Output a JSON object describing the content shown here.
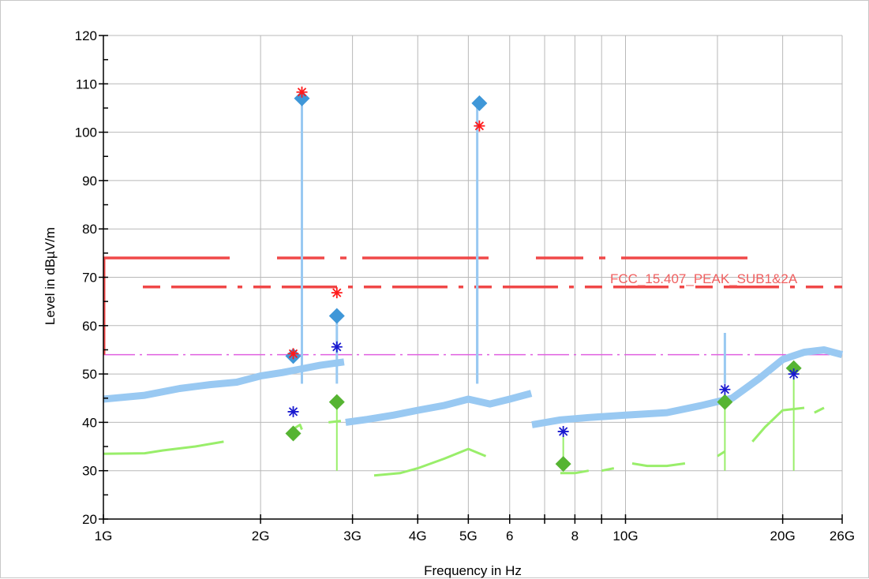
{
  "chart_data": {
    "type": "line",
    "title": "",
    "xlabel": "Frequency in Hz",
    "ylabel": "Level in dBµV/m",
    "x_scale": "log",
    "xlim_hz": [
      1000000000,
      26000000000
    ],
    "ylim": [
      20,
      120
    ],
    "y_ticks": [
      20,
      30,
      40,
      50,
      60,
      70,
      80,
      90,
      100,
      110,
      120
    ],
    "x_ticks": [
      {
        "label": "1G",
        "hz": 1000000000
      },
      {
        "label": "2G",
        "hz": 2000000000
      },
      {
        "label": "3G",
        "hz": 3000000000
      },
      {
        "label": "4G",
        "hz": 4000000000
      },
      {
        "label": "5G",
        "hz": 5000000000
      },
      {
        "label": "6",
        "hz": 6000000000
      },
      {
        "label": "8",
        "hz": 8000000000
      },
      {
        "label": "10G",
        "hz": 10000000000
      },
      {
        "label": "20G",
        "hz": 20000000000
      },
      {
        "label": "26G",
        "hz": 26000000000
      }
    ],
    "grid": true,
    "limit_label": "FCC_15.407_PEAK_SUB1&2A",
    "colors": {
      "peak_trace": "#99c9f2",
      "average_trace": "#99ee6a",
      "limit_line": "#f04848",
      "average_limit_line": "#e060e0",
      "final_peak_marker": "#3f97d8",
      "final_average_marker": "#56b432",
      "red_star": "#ff1a1a",
      "blue_star": "#1a1ad0",
      "grid": "#b8b8b8"
    },
    "limit_lines": [
      {
        "kind": "peak_limit",
        "segments": [
          [
            1000000000,
            18000000000,
            74
          ]
        ]
      },
      {
        "kind": "peak_limit_band",
        "segments": [
          [
            1190000000,
            26000000000,
            68
          ]
        ]
      },
      {
        "kind": "average_limit",
        "segments": [
          [
            1000000000,
            26000000000,
            54
          ]
        ]
      },
      {
        "kind": "limit_vertical",
        "hz": 1000000000,
        "from": 54,
        "to": 74
      }
    ],
    "peak_trace_points": [
      [
        1000000000,
        44.8
      ],
      [
        1200000000,
        45.6
      ],
      [
        1400000000,
        47.0
      ],
      [
        1600000000,
        47.8
      ],
      [
        1800000000,
        48.3
      ],
      [
        2000000000,
        49.6
      ],
      [
        2200000000,
        50.3
      ],
      [
        2380000000,
        51.0
      ],
      [
        2600000000,
        51.8
      ],
      [
        2890000000,
        52.5
      ],
      [
        2910000000,
        40.0
      ],
      [
        3200000000,
        40.6
      ],
      [
        3600000000,
        41.5
      ],
      [
        4000000000,
        42.5
      ],
      [
        4500000000,
        43.5
      ],
      [
        5000000000,
        44.8
      ],
      [
        5500000000,
        43.8
      ],
      [
        6000000000,
        44.8
      ],
      [
        6600000000,
        46.0
      ],
      [
        6620000000,
        39.5
      ],
      [
        7500000000,
        40.5
      ],
      [
        8500000000,
        41.0
      ],
      [
        10000000000,
        41.5
      ],
      [
        12000000000,
        42.0
      ],
      [
        14000000000,
        43.5
      ],
      [
        16000000000,
        45.0
      ],
      [
        18000000000,
        49.0
      ],
      [
        20000000000,
        53.0
      ],
      [
        22000000000,
        54.5
      ],
      [
        24000000000,
        55.0
      ],
      [
        26000000000,
        54.0
      ]
    ],
    "peak_trace_spikes": [
      {
        "hz": 2400000000,
        "top": 107
      },
      {
        "hz": 2400000000,
        "top": 66
      },
      {
        "hz": 2800000000,
        "top": 62
      },
      {
        "hz": 5200000000,
        "top": 106
      },
      {
        "hz": 5200000000,
        "top": 75
      },
      {
        "hz": 7600000000,
        "top": 48
      },
      {
        "hz": 15500000000,
        "top": 58.5
      }
    ],
    "average_trace_segments": [
      [
        [
          1000000000,
          33.5
        ],
        [
          1200000000,
          33.6
        ],
        [
          1300000000,
          34.2
        ],
        [
          1500000000,
          35.0
        ],
        [
          1700000000,
          36.0
        ]
      ],
      [
        [
          2300000000,
          38.5
        ],
        [
          2380000000,
          39.5
        ],
        [
          2400000000,
          38.5
        ]
      ],
      [
        [
          2700000000,
          40.0
        ],
        [
          2850000000,
          40.3
        ]
      ],
      [
        [
          3300000000,
          29.0
        ],
        [
          3700000000,
          29.5
        ],
        [
          4000000000,
          30.5
        ],
        [
          4500000000,
          32.5
        ],
        [
          5000000000,
          34.5
        ],
        [
          5400000000,
          33.0
        ]
      ],
      [
        [
          7500000000,
          29.5
        ],
        [
          8000000000,
          29.5
        ],
        [
          8500000000,
          30.0
        ]
      ],
      [
        [
          9000000000,
          30.0
        ],
        [
          9500000000,
          30.5
        ]
      ],
      [
        [
          10300000000,
          31.5
        ],
        [
          11000000000,
          31.0
        ],
        [
          12000000000,
          31.0
        ],
        [
          13000000000,
          31.5
        ]
      ],
      [
        [
          15000000000,
          33.0
        ],
        [
          15500000000,
          34.0
        ]
      ],
      [
        [
          17500000000,
          36.0
        ],
        [
          18500000000,
          39.0
        ],
        [
          20000000000,
          42.5
        ],
        [
          22000000000,
          43.0
        ]
      ],
      [
        [
          23000000000,
          42.0
        ],
        [
          24000000000,
          43.0
        ]
      ]
    ],
    "average_trace_spikes": [
      {
        "hz": 2800000000,
        "top": 44
      },
      {
        "hz": 7600000000,
        "top": 37
      },
      {
        "hz": 15500000000,
        "top": 44
      },
      {
        "hz": 21000000000,
        "top": 51
      }
    ],
    "final_peak_markers": [
      {
        "hz": 2310000000,
        "level": 53.7
      },
      {
        "hz": 2400000000,
        "level": 107
      },
      {
        "hz": 2800000000,
        "level": 62
      },
      {
        "hz": 5250000000,
        "level": 106
      }
    ],
    "final_average_markers": [
      {
        "hz": 2310000000,
        "level": 37.7
      },
      {
        "hz": 2800000000,
        "level": 44.2
      },
      {
        "hz": 7600000000,
        "level": 31.4
      },
      {
        "hz": 15500000000,
        "level": 44.2
      },
      {
        "hz": 21000000000,
        "level": 51.2
      }
    ],
    "red_star_markers": [
      {
        "hz": 2310000000,
        "level": 54.2
      },
      {
        "hz": 2400000000,
        "level": 108.3
      },
      {
        "hz": 2800000000,
        "level": 66.8
      },
      {
        "hz": 5250000000,
        "level": 101.3
      }
    ],
    "blue_star_markers": [
      {
        "hz": 2310000000,
        "level": 42.2
      },
      {
        "hz": 2800000000,
        "level": 55.6
      },
      {
        "hz": 7600000000,
        "level": 38.1
      },
      {
        "hz": 15500000000,
        "level": 46.8
      },
      {
        "hz": 21000000000,
        "level": 50.0
      }
    ]
  }
}
